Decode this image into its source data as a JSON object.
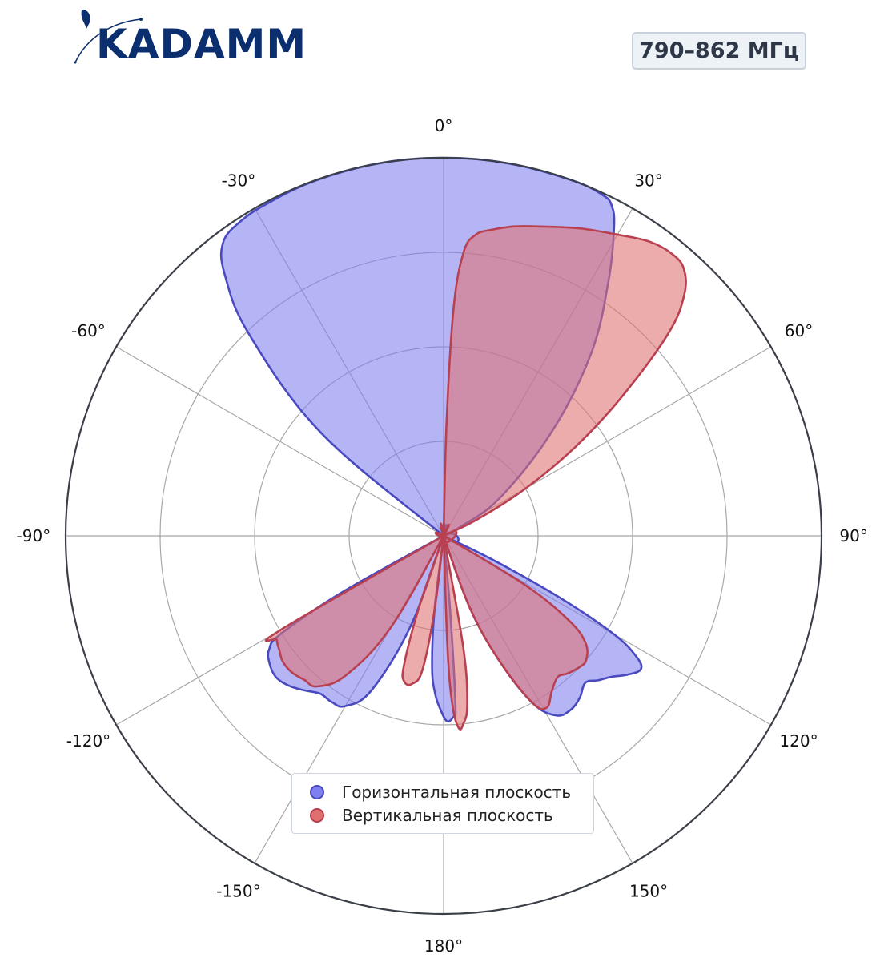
{
  "brand": {
    "logo_text": "KADAMM",
    "logo_color": "#0b2f6e"
  },
  "badge": {
    "text": "790–862 МГц"
  },
  "legend": {
    "items": [
      {
        "label": "Горизонтальная плоскость",
        "fill": "#7f7ff0",
        "stroke": "#4a4ac0"
      },
      {
        "label": "Вертикальная плоскость",
        "fill": "#e07070",
        "stroke": "#b94050"
      }
    ]
  },
  "chart_data": {
    "type": "polar-area",
    "title": "",
    "angular_ticks": [
      "0°",
      "30°",
      "60°",
      "90°",
      "120°",
      "150°",
      "180°",
      "-150°",
      "-120°",
      "-90°",
      "-60°",
      "-30°"
    ],
    "angular_tick_values": [
      0,
      30,
      60,
      90,
      120,
      150,
      180,
      -150,
      -120,
      -90,
      -60,
      -30
    ],
    "radial_range": [
      0,
      1
    ],
    "radial_grid": [
      0.25,
      0.5,
      0.75,
      1.0
    ],
    "grid": true,
    "legend_position": "bottom-center",
    "series": [
      {
        "name": "Горизонтальная плоскость",
        "color_fill": "#7f7ff0",
        "color_line": "#4a4ac0",
        "points": [
          [
            -58,
            0.0
          ],
          [
            -50,
            0.42
          ],
          [
            -44,
            0.74
          ],
          [
            -40,
            0.9
          ],
          [
            -37,
            0.97
          ],
          [
            -33,
            0.99
          ],
          [
            -28,
            0.995
          ],
          [
            -20,
            0.999
          ],
          [
            -10,
            1.0
          ],
          [
            0,
            1.0
          ],
          [
            10,
            1.0
          ],
          [
            20,
            1.0
          ],
          [
            25,
            0.995
          ],
          [
            27,
            0.98
          ],
          [
            29,
            0.93
          ],
          [
            33,
            0.8
          ],
          [
            39,
            0.62
          ],
          [
            46,
            0.4
          ],
          [
            56,
            0.18
          ],
          [
            62,
            0.05
          ],
          [
            66,
            0.0
          ],
          [
            114,
            0.0
          ],
          [
            116,
            0.15
          ],
          [
            118,
            0.35
          ],
          [
            120,
            0.52
          ],
          [
            122,
            0.6
          ],
          [
            124,
            0.63
          ],
          [
            127,
            0.61
          ],
          [
            130,
            0.58
          ],
          [
            133,
            0.56
          ],
          [
            136,
            0.54
          ],
          [
            140,
            0.56
          ],
          [
            144,
            0.57
          ],
          [
            148,
            0.56
          ],
          [
            152,
            0.5
          ],
          [
            156,
            0.36
          ],
          [
            160,
            0.2
          ],
          [
            164,
            0.0
          ],
          [
            174,
            0.0
          ],
          [
            175,
            0.2
          ],
          [
            176,
            0.45
          ],
          [
            177,
            0.48
          ],
          [
            179,
            0.49
          ],
          [
            181,
            0.46
          ],
          [
            183,
            0.42
          ],
          [
            185,
            0.35
          ],
          [
            187,
            0.2
          ],
          [
            188,
            0.0
          ],
          [
            195,
            0.0
          ],
          [
            200,
            0.25
          ],
          [
            205,
            0.45
          ],
          [
            210,
            0.52
          ],
          [
            214,
            0.53
          ],
          [
            218,
            0.53
          ],
          [
            222,
            0.55
          ],
          [
            226,
            0.57
          ],
          [
            230,
            0.58
          ],
          [
            234,
            0.57
          ],
          [
            237,
            0.55
          ],
          [
            239,
            0.5
          ],
          [
            241,
            0.3
          ],
          [
            243,
            0.0
          ]
        ]
      },
      {
        "name": "Вертикальная плоскость",
        "color_fill": "#e07070",
        "color_line": "#b94050",
        "points": [
          [
            1,
            0.0
          ],
          [
            1.5,
            0.3
          ],
          [
            2.5,
            0.6
          ],
          [
            4,
            0.75
          ],
          [
            6,
            0.8
          ],
          [
            9,
            0.82
          ],
          [
            13,
            0.84
          ],
          [
            18,
            0.86
          ],
          [
            24,
            0.89
          ],
          [
            30,
            0.92
          ],
          [
            35,
            0.95
          ],
          [
            39,
            0.96
          ],
          [
            42,
            0.95
          ],
          [
            45,
            0.9
          ],
          [
            48,
            0.8
          ],
          [
            52,
            0.6
          ],
          [
            56,
            0.42
          ],
          [
            60,
            0.25
          ],
          [
            64,
            0.1
          ],
          [
            67,
            0.0
          ],
          [
            118,
            0.0
          ],
          [
            121,
            0.25
          ],
          [
            124,
            0.4
          ],
          [
            127,
            0.47
          ],
          [
            131,
            0.5
          ],
          [
            134,
            0.5
          ],
          [
            138,
            0.49
          ],
          [
            141,
            0.48
          ],
          [
            145,
            0.5
          ],
          [
            149,
            0.53
          ],
          [
            152,
            0.5
          ],
          [
            156,
            0.36
          ],
          [
            160,
            0.2
          ],
          [
            163,
            0.0
          ],
          [
            168,
            0.0
          ],
          [
            170,
            0.3
          ],
          [
            172,
            0.45
          ],
          [
            174,
            0.5
          ],
          [
            175.5,
            0.51
          ],
          [
            177,
            0.45
          ],
          [
            178,
            0.3
          ],
          [
            178.5,
            0.0
          ],
          [
            186,
            0.0
          ],
          [
            187,
            0.2
          ],
          [
            189,
            0.36
          ],
          [
            192,
            0.4
          ],
          [
            195,
            0.4
          ],
          [
            197,
            0.36
          ],
          [
            199,
            0.2
          ],
          [
            201,
            0.0
          ],
          [
            205,
            0.0
          ],
          [
            210,
            0.28
          ],
          [
            215,
            0.45
          ],
          [
            220,
            0.52
          ],
          [
            224,
            0.53
          ],
          [
            228,
            0.54
          ],
          [
            232,
            0.54
          ],
          [
            235,
            0.53
          ],
          [
            238,
            0.52
          ],
          [
            240,
            0.5
          ],
          [
            243,
            0.0
          ]
        ]
      }
    ]
  }
}
